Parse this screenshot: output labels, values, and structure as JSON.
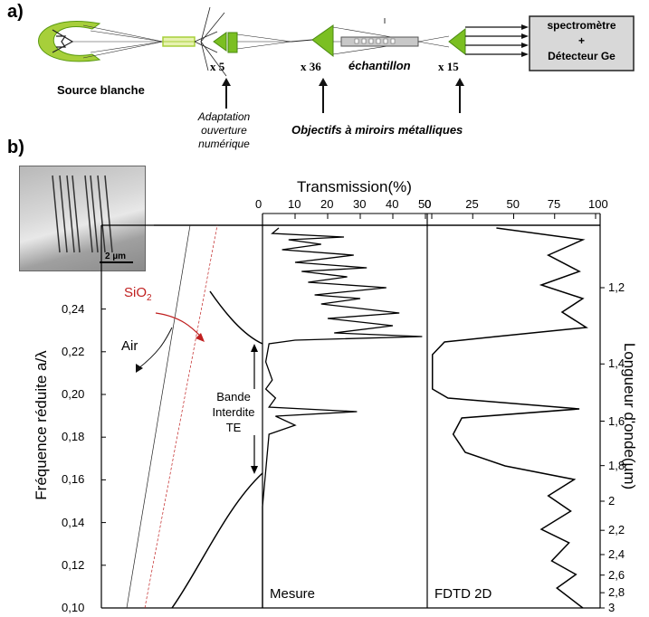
{
  "panel_a": {
    "label": "a)",
    "source": "Source blanche",
    "mag1": "x 5",
    "mag2": "x 36",
    "mag3": "x 15",
    "sample": "échantillon",
    "adaptation": [
      "Adaptation",
      "ouverture",
      "numérique"
    ],
    "objectives": "Objectifs à miroirs métalliques",
    "detector_box": [
      "spectromètre",
      "+",
      "Détecteur Ge"
    ],
    "colors": {
      "mirror": "#a7cf3a",
      "dark_green": "#5a9a10",
      "box_fill": "#d8d8d8"
    }
  },
  "panel_b": {
    "label": "b)",
    "inset_scale": "2 µm",
    "y_label": "Fréquence réduite a/λ",
    "right_label": "Longueur d'onde(µm)",
    "top_label": "Transmission(%)",
    "air": "Air",
    "sio2": "SiO",
    "sio2_sub": "2",
    "band_gap": [
      "Bande",
      "Interdite",
      "TE"
    ],
    "mesure": "Mesure",
    "fdtd": "FDTD 2D",
    "colors": {
      "sio2": "#c02020"
    }
  },
  "chart_data": [
    {
      "type": "line",
      "panel": "dispersion",
      "ylabel": "Fréquence réduite a/λ",
      "ylim": [
        0.1,
        0.26
      ],
      "y_ticks": [
        "0,10",
        "0,12",
        "0,14",
        "0,16",
        "0,18",
        "0,20",
        "0,22",
        "0,24"
      ],
      "series": [
        {
          "name": "Air",
          "points": [
            [
              0.0,
              0.1
            ],
            [
              1.0,
              0.26
            ]
          ]
        },
        {
          "name": "SiO2",
          "points": [
            [
              0.15,
              0.1
            ],
            [
              1.0,
              0.26
            ]
          ]
        },
        {
          "points": [
            [
              0.35,
              0.1
            ],
            [
              0.5,
              0.125
            ],
            [
              0.7,
              0.15
            ],
            [
              0.85,
              0.16
            ],
            [
              1.0,
              0.164
            ]
          ]
        },
        {
          "points": [
            [
              0.45,
              0.248
            ],
            [
              0.6,
              0.242
            ],
            [
              0.8,
              0.23
            ],
            [
              1.0,
              0.224
            ]
          ]
        }
      ],
      "band_gap": [
        0.164,
        0.224
      ]
    },
    {
      "type": "line",
      "panel": "Mesure",
      "xlabel": "Transmission(%)",
      "xlim": [
        0,
        50
      ],
      "x_ticks": [
        "0",
        "10",
        "20",
        "30",
        "40",
        "50"
      ],
      "ylim": [
        0.1,
        0.26
      ],
      "peaks": [
        [
          0.228,
          49
        ],
        [
          0.194,
          29
        ],
        [
          0.24,
          40
        ],
        [
          0.25,
          30
        ]
      ]
    },
    {
      "type": "line",
      "panel": "FDTD 2D",
      "xlabel": "Transmission(%)",
      "xlim": [
        0,
        100
      ],
      "x_ticks": [
        "0",
        "25",
        "50",
        "75",
        "100"
      ],
      "right_axis_label": "Longueur d'onde(µm)",
      "right_ticks": [
        "1,2",
        "1,4",
        "1,6",
        "1,8",
        "2",
        "2,2",
        "2,4",
        "2,6",
        "2,8",
        "3"
      ],
      "ylim": [
        0.1,
        0.26
      ],
      "points": [
        [
          0.26,
          40
        ],
        [
          0.255,
          90
        ],
        [
          0.245,
          65
        ],
        [
          0.238,
          90
        ],
        [
          0.232,
          80
        ],
        [
          0.226,
          90
        ],
        [
          0.224,
          20
        ],
        [
          0.22,
          5
        ],
        [
          0.205,
          5
        ],
        [
          0.199,
          15
        ],
        [
          0.195,
          90
        ],
        [
          0.19,
          18
        ],
        [
          0.182,
          15
        ],
        [
          0.17,
          40
        ],
        [
          0.163,
          85
        ],
        [
          0.155,
          70
        ],
        [
          0.145,
          85
        ],
        [
          0.135,
          65
        ],
        [
          0.125,
          80
        ],
        [
          0.115,
          72
        ],
        [
          0.105,
          85
        ],
        [
          0.1,
          90
        ]
      ]
    }
  ]
}
